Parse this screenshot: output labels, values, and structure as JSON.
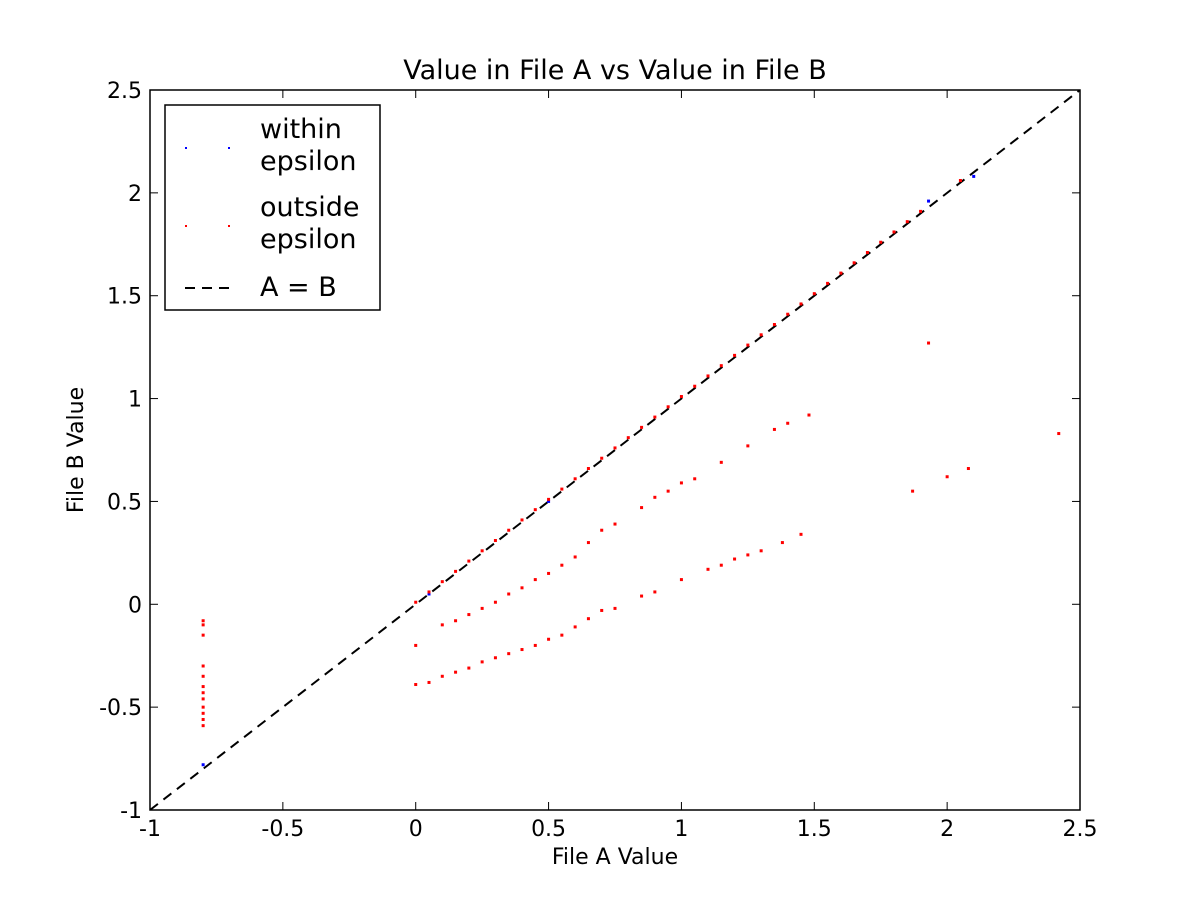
{
  "chart_data": {
    "type": "scatter",
    "title": "Value in File A vs Value in File B",
    "xlabel": "File A Value",
    "ylabel": "File B Value",
    "xlim": [
      -1,
      2.5
    ],
    "ylim": [
      -1,
      2.5
    ],
    "xticks": [
      -1,
      -0.5,
      0,
      0.5,
      1,
      1.5,
      2,
      2.5
    ],
    "xtick_labels": [
      "-1",
      "-0.5",
      "0",
      "0.5",
      "1",
      "1.5",
      "2",
      "2.5"
    ],
    "yticks": [
      -1,
      -0.5,
      0,
      0.5,
      1,
      1.5,
      2,
      2.5
    ],
    "ytick_labels": [
      "-1",
      "-0.5",
      "0",
      "0.5",
      "1",
      "1.5",
      "2",
      "2.5"
    ],
    "grid": false,
    "legend_position": "top-left",
    "legend": [
      {
        "label_lines": [
          "within",
          "epsilon"
        ],
        "marker": "dot",
        "color": "#0000ff"
      },
      {
        "label_lines": [
          "outside",
          "epsilon"
        ],
        "marker": "dot",
        "color": "#ff0000"
      },
      {
        "label_lines": [
          "A = B"
        ],
        "marker": "dashed-line",
        "color": "#000000"
      }
    ],
    "series": [
      {
        "name": "within epsilon",
        "color": "#0000ff",
        "points": [
          [
            -0.8,
            -0.78
          ],
          [
            1.93,
            1.96
          ],
          [
            2.1,
            2.08
          ],
          [
            0.05,
            0.05
          ],
          [
            0.5,
            0.5
          ]
        ]
      },
      {
        "name": "outside epsilon",
        "color": "#ff0000",
        "points": [
          [
            0.0,
            0.01
          ],
          [
            0.05,
            0.06
          ],
          [
            0.1,
            0.11
          ],
          [
            0.15,
            0.16
          ],
          [
            0.2,
            0.21
          ],
          [
            0.25,
            0.26
          ],
          [
            0.3,
            0.31
          ],
          [
            0.35,
            0.36
          ],
          [
            0.4,
            0.41
          ],
          [
            0.45,
            0.46
          ],
          [
            0.5,
            0.51
          ],
          [
            0.55,
            0.56
          ],
          [
            0.6,
            0.61
          ],
          [
            0.65,
            0.66
          ],
          [
            0.7,
            0.71
          ],
          [
            0.75,
            0.76
          ],
          [
            0.8,
            0.81
          ],
          [
            0.85,
            0.86
          ],
          [
            0.9,
            0.91
          ],
          [
            0.95,
            0.96
          ],
          [
            1.0,
            1.01
          ],
          [
            1.05,
            1.06
          ],
          [
            1.1,
            1.11
          ],
          [
            1.15,
            1.16
          ],
          [
            1.2,
            1.21
          ],
          [
            1.25,
            1.26
          ],
          [
            1.3,
            1.31
          ],
          [
            1.35,
            1.36
          ],
          [
            1.4,
            1.41
          ],
          [
            1.45,
            1.46
          ],
          [
            1.5,
            1.51
          ],
          [
            1.55,
            1.56
          ],
          [
            1.6,
            1.61
          ],
          [
            1.65,
            1.66
          ],
          [
            1.7,
            1.71
          ],
          [
            1.75,
            1.76
          ],
          [
            1.8,
            1.81
          ],
          [
            1.85,
            1.86
          ],
          [
            1.9,
            1.91
          ],
          [
            2.05,
            2.06
          ],
          [
            0.1,
            -0.1
          ],
          [
            0.15,
            -0.08
          ],
          [
            0.2,
            -0.05
          ],
          [
            0.25,
            -0.02
          ],
          [
            0.3,
            0.01
          ],
          [
            0.35,
            0.05
          ],
          [
            0.4,
            0.08
          ],
          [
            0.45,
            0.12
          ],
          [
            0.5,
            0.15
          ],
          [
            0.55,
            0.19
          ],
          [
            0.6,
            0.23
          ],
          [
            0.65,
            0.3
          ],
          [
            0.7,
            0.36
          ],
          [
            0.75,
            0.39
          ],
          [
            0.85,
            0.47
          ],
          [
            0.9,
            0.52
          ],
          [
            0.95,
            0.55
          ],
          [
            1.0,
            0.59
          ],
          [
            1.05,
            0.61
          ],
          [
            1.15,
            0.69
          ],
          [
            1.25,
            0.77
          ],
          [
            1.35,
            0.85
          ],
          [
            1.4,
            0.88
          ],
          [
            1.48,
            0.92
          ],
          [
            0.0,
            -0.39
          ],
          [
            0.05,
            -0.38
          ],
          [
            0.1,
            -0.35
          ],
          [
            0.15,
            -0.33
          ],
          [
            0.2,
            -0.31
          ],
          [
            0.25,
            -0.28
          ],
          [
            0.3,
            -0.26
          ],
          [
            0.35,
            -0.24
          ],
          [
            0.4,
            -0.22
          ],
          [
            0.45,
            -0.2
          ],
          [
            0.5,
            -0.17
          ],
          [
            0.55,
            -0.15
          ],
          [
            0.6,
            -0.11
          ],
          [
            0.65,
            -0.07
          ],
          [
            0.7,
            -0.03
          ],
          [
            0.75,
            -0.02
          ],
          [
            0.85,
            0.04
          ],
          [
            0.9,
            0.06
          ],
          [
            1.0,
            0.12
          ],
          [
            1.1,
            0.17
          ],
          [
            1.15,
            0.19
          ],
          [
            1.2,
            0.22
          ],
          [
            1.25,
            0.24
          ],
          [
            1.3,
            0.26
          ],
          [
            1.38,
            0.3
          ],
          [
            1.45,
            0.34
          ],
          [
            0.0,
            -0.2
          ],
          [
            1.93,
            1.27
          ],
          [
            2.42,
            0.83
          ],
          [
            1.87,
            0.55
          ],
          [
            2.0,
            0.62
          ],
          [
            2.08,
            0.66
          ],
          [
            -0.8,
            -0.08
          ],
          [
            -0.8,
            -0.1
          ],
          [
            -0.8,
            -0.15
          ],
          [
            -0.8,
            -0.3
          ],
          [
            -0.8,
            -0.35
          ],
          [
            -0.8,
            -0.4
          ],
          [
            -0.8,
            -0.43
          ],
          [
            -0.8,
            -0.46
          ],
          [
            -0.8,
            -0.5
          ],
          [
            -0.8,
            -0.53
          ],
          [
            -0.8,
            -0.56
          ],
          [
            -0.8,
            -0.59
          ]
        ]
      }
    ],
    "reference_line": {
      "name": "A = B",
      "style": "dashed",
      "color": "#000000",
      "x": [
        -1,
        2.5
      ],
      "y": [
        -1,
        2.5
      ]
    }
  }
}
